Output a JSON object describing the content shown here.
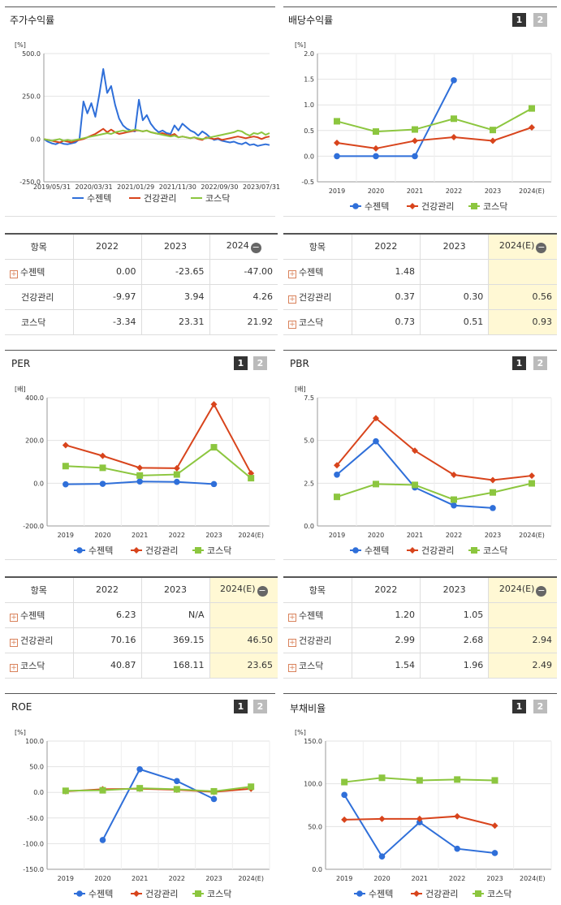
{
  "legend": {
    "s1": "수젠텍",
    "s2": "건강관리",
    "s3": "코스닥"
  },
  "colors": {
    "s1": "#2f6fd9",
    "s2": "#d8441c",
    "s3": "#8cc63f"
  },
  "panels": {
    "stock": {
      "title": "주가수익률",
      "unit": "[%]"
    },
    "dividend": {
      "title": "배당수익률",
      "unit": "[%]",
      "btn1": "1",
      "btn2": "2"
    },
    "per": {
      "title": "PER",
      "unit": "[배]",
      "btn1": "1",
      "btn2": "2"
    },
    "pbr": {
      "title": "PBR",
      "unit": "[배]",
      "btn1": "1",
      "btn2": "2"
    },
    "roe": {
      "title": "ROE",
      "unit": "[%]",
      "btn1": "1",
      "btn2": "2"
    },
    "debt": {
      "title": "부채비율",
      "unit": "[%]",
      "btn1": "1",
      "btn2": "2"
    }
  },
  "tables": {
    "stock": {
      "headers": [
        "항목",
        "2022",
        "2023",
        "2024"
      ],
      "rows": [
        {
          "name": "수젠텍",
          "plus": true,
          "vals": [
            "0.00",
            "-23.65",
            "-47.00"
          ]
        },
        {
          "name": "건강관리",
          "plus": false,
          "vals": [
            "-9.97",
            "3.94",
            "4.26"
          ]
        },
        {
          "name": "코스닥",
          "plus": false,
          "vals": [
            "-3.34",
            "23.31",
            "21.92"
          ]
        }
      ]
    },
    "dividend": {
      "headers": [
        "항목",
        "2022",
        "2023",
        "2024(E)"
      ],
      "rows": [
        {
          "name": "수젠텍",
          "plus": true,
          "vals": [
            "1.48",
            "",
            ""
          ]
        },
        {
          "name": "건강관리",
          "plus": true,
          "vals": [
            "0.37",
            "0.30",
            "0.56"
          ]
        },
        {
          "name": "코스닥",
          "plus": true,
          "vals": [
            "0.73",
            "0.51",
            "0.93"
          ]
        }
      ]
    },
    "per": {
      "headers": [
        "항목",
        "2022",
        "2023",
        "2024(E)"
      ],
      "rows": [
        {
          "name": "수젠텍",
          "plus": true,
          "vals": [
            "6.23",
            "N/A",
            ""
          ]
        },
        {
          "name": "건강관리",
          "plus": true,
          "vals": [
            "70.16",
            "369.15",
            "46.50"
          ]
        },
        {
          "name": "코스닥",
          "plus": true,
          "vals": [
            "40.87",
            "168.11",
            "23.65"
          ]
        }
      ]
    },
    "pbr": {
      "headers": [
        "항목",
        "2022",
        "2023",
        "2024(E)"
      ],
      "rows": [
        {
          "name": "수젠텍",
          "plus": true,
          "vals": [
            "1.20",
            "1.05",
            ""
          ]
        },
        {
          "name": "건강관리",
          "plus": true,
          "vals": [
            "2.99",
            "2.68",
            "2.94"
          ]
        },
        {
          "name": "코스닥",
          "plus": true,
          "vals": [
            "1.54",
            "1.96",
            "2.49"
          ]
        }
      ]
    }
  },
  "chart_data": [
    {
      "id": "stock",
      "type": "line",
      "title": "주가수익률",
      "ylabel": "[%]",
      "ylim": [
        -250,
        500
      ],
      "yticks": [
        "500.0",
        "250.0",
        "0.0",
        "-250.0"
      ],
      "xticks": [
        "2019/05/31",
        "2020/03/31",
        "2021/01/29",
        "2021/11/30",
        "2022/09/30",
        "2023/07/31"
      ],
      "series": [
        {
          "name": "수젠텍",
          "values": [
            0,
            -15,
            -25,
            -30,
            -20,
            -28,
            -30,
            -25,
            -20,
            0,
            220,
            150,
            210,
            130,
            260,
            410,
            270,
            310,
            200,
            120,
            80,
            60,
            50,
            45,
            230,
            110,
            140,
            90,
            60,
            40,
            50,
            35,
            30,
            80,
            50,
            90,
            70,
            50,
            40,
            20,
            45,
            30,
            10,
            -5,
            0,
            -10,
            -15,
            -20,
            -15,
            -25,
            -30,
            -20,
            -35,
            -30,
            -40,
            -35,
            -30,
            -35
          ]
        },
        {
          "name": "건강관리",
          "values": [
            0,
            -5,
            -10,
            -15,
            -20,
            -10,
            -15,
            -20,
            -10,
            -5,
            0,
            10,
            20,
            30,
            45,
            60,
            40,
            55,
            40,
            30,
            35,
            40,
            45,
            50,
            50,
            45,
            50,
            40,
            35,
            30,
            35,
            25,
            20,
            30,
            10,
            15,
            10,
            5,
            10,
            0,
            -5,
            10,
            5,
            0,
            5,
            -5,
            0,
            5,
            10,
            15,
            10,
            5,
            10,
            15,
            10,
            0,
            10,
            15
          ]
        },
        {
          "name": "코스닥",
          "values": [
            0,
            -5,
            -10,
            -5,
            0,
            -10,
            -5,
            -10,
            -5,
            0,
            5,
            10,
            15,
            20,
            25,
            30,
            35,
            30,
            40,
            45,
            50,
            45,
            50,
            55,
            50,
            45,
            50,
            40,
            35,
            30,
            25,
            20,
            15,
            20,
            10,
            15,
            10,
            5,
            10,
            5,
            0,
            5,
            10,
            15,
            20,
            25,
            30,
            35,
            40,
            50,
            45,
            30,
            20,
            35,
            30,
            40,
            25,
            35
          ]
        }
      ]
    },
    {
      "id": "dividend",
      "type": "line",
      "title": "배당수익률",
      "ylabel": "[%]",
      "ylim": [
        -0.5,
        2.0
      ],
      "yticks": [
        "2.0",
        "1.5",
        "1.0",
        "0.5",
        "0.0",
        "-0.5"
      ],
      "categories": [
        "2019",
        "2020",
        "2021",
        "2022",
        "2023",
        "2024(E)"
      ],
      "series": [
        {
          "name": "수젠텍",
          "values": [
            0.0,
            0.0,
            0.0,
            1.48,
            null,
            null
          ]
        },
        {
          "name": "건강관리",
          "values": [
            0.26,
            0.15,
            0.3,
            0.37,
            0.3,
            0.56
          ]
        },
        {
          "name": "코스닥",
          "values": [
            0.68,
            0.48,
            0.52,
            0.73,
            0.51,
            0.93
          ]
        }
      ]
    },
    {
      "id": "per",
      "type": "line",
      "title": "PER",
      "ylabel": "[배]",
      "ylim": [
        -200,
        400
      ],
      "yticks": [
        "400.0",
        "200.0",
        "0.0",
        "-200.0"
      ],
      "categories": [
        "2019",
        "2020",
        "2021",
        "2022",
        "2023",
        "2024(E)"
      ],
      "series": [
        {
          "name": "수젠텍",
          "values": [
            -5,
            -3,
            8,
            6.23,
            -4,
            null
          ]
        },
        {
          "name": "건강관리",
          "values": [
            178,
            128,
            72,
            70.16,
            369.15,
            46.5
          ]
        },
        {
          "name": "코스닥",
          "values": [
            80,
            72,
            36,
            40.87,
            168.11,
            23.65
          ]
        }
      ]
    },
    {
      "id": "pbr",
      "type": "line",
      "title": "PBR",
      "ylabel": "[배]",
      "ylim": [
        0,
        7.5
      ],
      "yticks": [
        "7.5",
        "5.0",
        "2.5",
        "0.0"
      ],
      "categories": [
        "2019",
        "2020",
        "2021",
        "2022",
        "2023",
        "2024(E)"
      ],
      "series": [
        {
          "name": "수젠텍",
          "values": [
            3.0,
            4.95,
            2.25,
            1.2,
            1.05,
            null
          ]
        },
        {
          "name": "건강관리",
          "values": [
            3.55,
            6.3,
            4.4,
            2.99,
            2.68,
            2.94
          ]
        },
        {
          "name": "코스닥",
          "values": [
            1.7,
            2.45,
            2.4,
            1.54,
            1.96,
            2.49
          ]
        }
      ]
    },
    {
      "id": "roe",
      "type": "line",
      "title": "ROE",
      "ylabel": "[%]",
      "ylim": [
        -150,
        100
      ],
      "yticks": [
        "100.0",
        "50.0",
        "0.0",
        "-50.0",
        "-100.0",
        "-150.0"
      ],
      "categories": [
        "2019",
        "2020",
        "2021",
        "2022",
        "2023",
        "2024(E)"
      ],
      "series": [
        {
          "name": "수젠텍",
          "values": [
            null,
            -93,
            45,
            22,
            -13,
            null
          ]
        },
        {
          "name": "건강관리",
          "values": [
            2,
            6,
            7,
            5,
            1,
            7
          ]
        },
        {
          "name": "코스닥",
          "values": [
            3,
            4,
            8,
            6,
            2,
            11
          ]
        }
      ]
    },
    {
      "id": "debt",
      "type": "line",
      "title": "부채비율",
      "ylabel": "[%]",
      "ylim": [
        0,
        150
      ],
      "yticks": [
        "150.0",
        "100.0",
        "50.0",
        "0.0"
      ],
      "categories": [
        "2019",
        "2020",
        "2021",
        "2022",
        "2023",
        "2024(E)"
      ],
      "series": [
        {
          "name": "수젠텍",
          "values": [
            87,
            15,
            55,
            24,
            19,
            null
          ]
        },
        {
          "name": "건강관리",
          "values": [
            58,
            59,
            59,
            62,
            51,
            null
          ]
        },
        {
          "name": "코스닥",
          "values": [
            102,
            107,
            104,
            105,
            104,
            null
          ]
        }
      ]
    }
  ]
}
